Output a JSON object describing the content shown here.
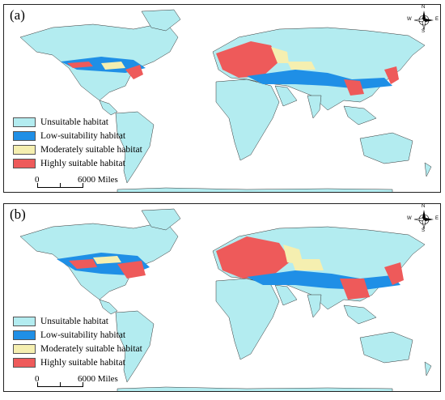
{
  "colors": {
    "ocean": "#ffffff",
    "unsuitable": "#b3ecf0",
    "low": "#1f8fe6",
    "moderate": "#f5efb0",
    "high": "#ee5a5a",
    "border": "#333333"
  },
  "legend": [
    {
      "label": "Unsuitable habitat",
      "color_key": "unsuitable"
    },
    {
      "label": "Low-suitability habitat",
      "color_key": "low"
    },
    {
      "label": "Moderately suitable habitat",
      "color_key": "moderate"
    },
    {
      "label": "Highly suitable habitat",
      "color_key": "high"
    }
  ],
  "scalebar": {
    "zero": "0",
    "value": "6000 Miles"
  },
  "compass": {
    "n": "N",
    "s": "S",
    "w": "W",
    "e": "E"
  },
  "panels": [
    {
      "id": "a",
      "label": "(a)"
    },
    {
      "id": "b",
      "label": "(b)"
    }
  ]
}
